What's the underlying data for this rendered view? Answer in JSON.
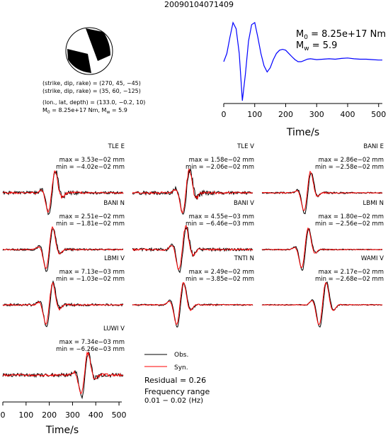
{
  "title": "20090104071409",
  "mechanism": {
    "plane1": "(strike, dip, rake) = (270, 45, −45)",
    "plane2": "(strike, dip, rake) = (35, 60, −125)",
    "location": "(lon., lat, depth) = (133.0, −0.2, 10)",
    "m0_mw_line": {
      "prefix": "M",
      "sub0": "0",
      "mid": " = 8.25e+17 Nm, M",
      "subw": "w",
      "suffix": " = 5.9"
    }
  },
  "stf": {
    "m0": {
      "prefix": "M",
      "sub": "0",
      "value": " = 8.25e+17 Nm"
    },
    "mw": {
      "prefix": "M",
      "sub": "w",
      "value": " = 5.9"
    },
    "xlabel": "Time/s",
    "xlim": [
      0,
      512
    ],
    "xticks": [
      "0",
      "100",
      "200",
      "300",
      "400",
      "500"
    ]
  },
  "legend": {
    "obs": "Obs.",
    "syn": "Syn."
  },
  "residual": "Residual = 0.26",
  "freq_label": "Frequency range",
  "freq_value": "0.01 − 0.02 (Hz)",
  "bottom_axis": {
    "xlabel": "Time/s",
    "xlim": [
      0,
      512
    ],
    "xticks": [
      "0",
      "100",
      "200",
      "300",
      "400",
      "500"
    ]
  },
  "colors": {
    "obs": "#000000",
    "syn": "#ff0000",
    "stf": "#0000ff"
  },
  "chart_data": [
    {
      "type": "line",
      "name": "source time function",
      "xlabel": "Time/s",
      "xlim": [
        0,
        512
      ],
      "x": [
        0,
        10,
        20,
        30,
        40,
        50,
        60,
        70,
        80,
        90,
        100,
        110,
        120,
        130,
        140,
        150,
        160,
        170,
        180,
        190,
        200,
        210,
        220,
        230,
        240,
        250,
        260,
        270,
        280,
        290,
        300,
        320,
        340,
        360,
        380,
        400,
        420,
        440,
        460,
        480,
        500,
        512
      ],
      "values": [
        0.0,
        0.2,
        0.6,
        0.95,
        0.8,
        0.2,
        -0.95,
        -0.3,
        0.5,
        0.9,
        0.95,
        0.6,
        0.2,
        -0.1,
        -0.25,
        -0.15,
        0.05,
        0.2,
        0.28,
        0.3,
        0.28,
        0.2,
        0.12,
        0.05,
        0.0,
        0.0,
        0.03,
        0.06,
        0.07,
        0.06,
        0.05,
        0.06,
        0.07,
        0.06,
        0.08,
        0.09,
        0.07,
        0.06,
        0.06,
        0.05,
        0.04,
        0.04
      ]
    },
    {
      "type": "line",
      "name": "waveform comparison",
      "series_names": [
        "Obs.",
        "Syn."
      ],
      "panels": [
        {
          "station": "TLE E",
          "max": "max = 3.53e−02 mm",
          "min": "min = −4.02e−02 mm",
          "peak": 210,
          "width": 0.5,
          "noise": 0.16,
          "seed": 1
        },
        {
          "station": "TLE V",
          "max": "max = 1.58e−02 mm",
          "min": "min = −2.06e−02 mm",
          "peak": 230,
          "width": 0.55,
          "noise": 0.18,
          "seed": 2
        },
        {
          "station": "BANI E",
          "max": "max = 2.86e−02 mm",
          "min": "min = −2.58e−02 mm",
          "peak": 195,
          "width": 0.45,
          "noise": 0.08,
          "seed": 3
        },
        {
          "station": "BANI N",
          "max": "max = 2.51e−02 mm",
          "min": "min = −1.81e−02 mm",
          "peak": 200,
          "width": 0.5,
          "noise": 0.1,
          "seed": 4
        },
        {
          "station": "BANI V",
          "max": "max = 4.55e−03 mm",
          "min": "min = −6.46e−03 mm",
          "peak": 215,
          "width": 0.6,
          "noise": 0.15,
          "seed": 5
        },
        {
          "station": "LBMI N",
          "max": "max = 1.80e−02 mm",
          "min": "min = −2.56e−02 mm",
          "peak": 185,
          "width": 0.45,
          "noise": 0.06,
          "seed": 6
        },
        {
          "station": "LBMI V",
          "max": "max = 7.13e−03 mm",
          "min": "min = −1.03e−02 mm",
          "peak": 200,
          "width": 0.5,
          "noise": 0.12,
          "seed": 7
        },
        {
          "station": "TNTI N",
          "max": "max = 2.49e−02 mm",
          "min": "min = −3.85e−02 mm",
          "peak": 205,
          "width": 0.55,
          "noise": 0.08,
          "seed": 8
        },
        {
          "station": "WAMI V",
          "max": "max = 2.17e−02 mm",
          "min": "min = −2.68e−02 mm",
          "peak": 260,
          "width": 0.6,
          "noise": 0.05,
          "seed": 9
        },
        {
          "station": "LUWI V",
          "max": "max = 7.34e−03 mm",
          "min": "min = −6.26e−03 mm",
          "peak": 350,
          "width": 0.5,
          "noise": 0.18,
          "seed": 10
        }
      ]
    }
  ]
}
